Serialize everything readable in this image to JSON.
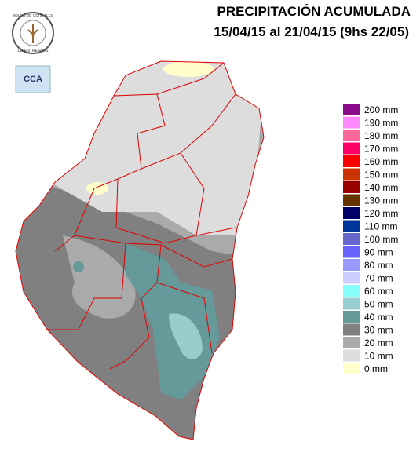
{
  "header": {
    "title": "PRECIPITACIÓN ACUMULADA",
    "subtitle": "15/04/15 al 21/04/15 (9hs 22/05)"
  },
  "logo": {
    "text_top": "BOLSA DE CEREALES",
    "text_bottom": "DE ENTRE RIOS",
    "badge": "CCA"
  },
  "legend": {
    "items": [
      {
        "label": "200 mm",
        "color": "#8b0a8b"
      },
      {
        "label": "190 mm",
        "color": "#ff88ff"
      },
      {
        "label": "180 mm",
        "color": "#ff6699"
      },
      {
        "label": "170 mm",
        "color": "#ff0066"
      },
      {
        "label": "160 mm",
        "color": "#ff0000"
      },
      {
        "label": "150 mm",
        "color": "#cc3300"
      },
      {
        "label": "140 mm",
        "color": "#990000"
      },
      {
        "label": "130 mm",
        "color": "#663300"
      },
      {
        "label": "120 mm",
        "color": "#000066"
      },
      {
        "label": "110 mm",
        "color": "#003399"
      },
      {
        "label": "100 mm",
        "color": "#6666cc"
      },
      {
        "label": "90 mm",
        "color": "#6666ff"
      },
      {
        "label": "80 mm",
        "color": "#9999ff"
      },
      {
        "label": "70 mm",
        "color": "#ccccff"
      },
      {
        "label": "60 mm",
        "color": "#88ffff"
      },
      {
        "label": "50 mm",
        "color": "#99cccc"
      },
      {
        "label": "40 mm",
        "color": "#669999"
      },
      {
        "label": "30 mm",
        "color": "#808080"
      },
      {
        "label": "20 mm",
        "color": "#aaaaaa"
      },
      {
        "label": "10 mm",
        "color": "#dddddd"
      },
      {
        "label": "0 mm",
        "color": "#ffffcc"
      }
    ]
  }
}
